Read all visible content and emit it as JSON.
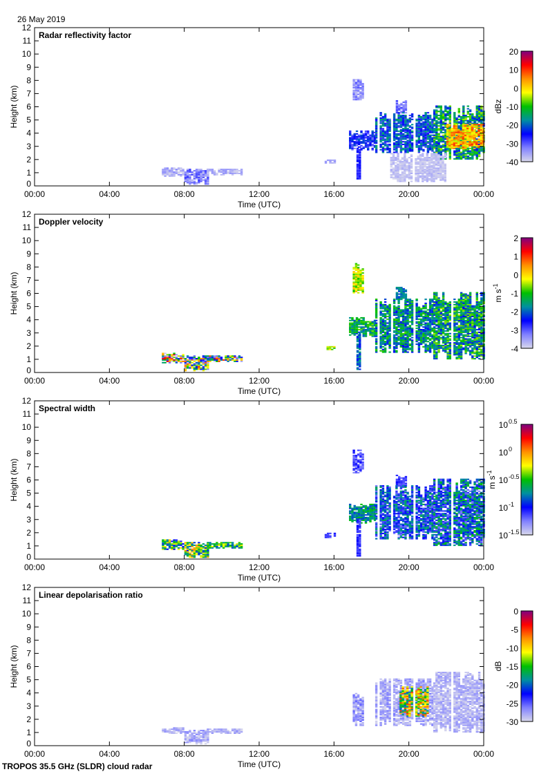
{
  "header": {
    "date": "26 May 2019"
  },
  "footer": {
    "instrument": "TROPOS 35.5 GHz (SLDR) cloud radar"
  },
  "chart_data": {
    "x_ticks": [
      "00:00",
      "04:00",
      "08:00",
      "12:00",
      "16:00",
      "20:00",
      "00:00"
    ],
    "xlim_utc_hours": [
      0,
      24
    ],
    "ylim_km": [
      0,
      12
    ],
    "y_ticks": [
      "0",
      "1",
      "2",
      "3",
      "4",
      "5",
      "6",
      "7",
      "8",
      "9",
      "10",
      "11",
      "12"
    ],
    "gaps_utc_hours": [
      18.35,
      19.05,
      20.25,
      21.35,
      22.3
    ],
    "colormap": [
      "#d8d8ec",
      "#8080ff",
      "#0000ff",
      "#0090a0",
      "#00c000",
      "#ffff00",
      "#ff9000",
      "#ff0000",
      "#800080"
    ],
    "panels": [
      {
        "type": "heatmap",
        "title": "Radar reflectivity factor",
        "xlabel": "Time (UTC)",
        "ylabel": "Height (km)",
        "unit": "dBz",
        "unit_sup": "",
        "vlim": [
          -40,
          20
        ],
        "cbar_ticks": [
          "20",
          "10",
          "0",
          "-10",
          "-20",
          "-30",
          "-40"
        ],
        "cbar_sup": null,
        "regions": [
          [
            6.8,
            8.0,
            0.7,
            1.4,
            -40,
            -32
          ],
          [
            8.0,
            9.2,
            0.1,
            1.3,
            -38,
            -28
          ],
          [
            9.2,
            11.0,
            0.8,
            1.3,
            -40,
            -33
          ],
          [
            15.5,
            16.0,
            1.6,
            2.0,
            -38,
            -34
          ],
          [
            17.0,
            17.5,
            6.5,
            8.0,
            -38,
            -30
          ],
          [
            19.3,
            19.8,
            5.5,
            6.4,
            -35,
            -28
          ],
          [
            16.8,
            18.2,
            2.7,
            4.2,
            -32,
            -20
          ],
          [
            17.2,
            17.4,
            0.2,
            3.0,
            -30,
            -24
          ],
          [
            18.2,
            21.3,
            2.5,
            5.5,
            -30,
            -14
          ],
          [
            21.3,
            24.0,
            2.0,
            6.0,
            -25,
            -5
          ],
          [
            22.0,
            24.0,
            2.8,
            4.6,
            -5,
            10
          ],
          [
            19.0,
            22.0,
            0.3,
            2.5,
            -40,
            -36
          ]
        ]
      },
      {
        "type": "heatmap",
        "title": "Doppler velocity",
        "xlabel": "Time (UTC)",
        "ylabel": "Height (km)",
        "unit": "m s",
        "unit_sup": "-1",
        "vlim": [
          -4,
          2
        ],
        "cbar_ticks": [
          "2",
          "1",
          "0",
          "-1",
          "-2",
          "-3",
          "-4"
        ],
        "cbar_sup": null,
        "regions": [
          [
            6.8,
            8.0,
            0.7,
            1.5,
            -4,
            2
          ],
          [
            8.0,
            9.2,
            0.1,
            1.3,
            -4,
            1
          ],
          [
            9.2,
            11.0,
            0.8,
            1.3,
            -4,
            2
          ],
          [
            15.6,
            16.0,
            1.6,
            2.0,
            -1,
            0
          ],
          [
            17.0,
            17.5,
            6.0,
            8.2,
            -1,
            0.3
          ],
          [
            19.3,
            19.8,
            5.5,
            6.4,
            -2.2,
            -1.5
          ],
          [
            16.8,
            18.2,
            2.7,
            4.2,
            -2.2,
            -0.6
          ],
          [
            17.2,
            17.4,
            0.2,
            3.0,
            -2.5,
            -1.5
          ],
          [
            18.2,
            21.3,
            1.5,
            5.5,
            -2.5,
            -0.8
          ],
          [
            21.3,
            24.0,
            1.0,
            6.0,
            -2.5,
            -0.5
          ]
        ]
      },
      {
        "type": "heatmap",
        "title": "Spectral width",
        "xlabel": "Time (UTC)",
        "ylabel": "Height (km)",
        "unit": "m s",
        "unit_sup": "-1",
        "vlim": [
          -1.5,
          0.5
        ],
        "cbar_ticks": [
          "10",
          "10",
          "10",
          "10",
          "10"
        ],
        "cbar_sup": [
          "0.5",
          "0",
          "-0.5",
          "-1",
          "-1.5"
        ],
        "regions": [
          [
            6.8,
            8.0,
            0.7,
            1.5,
            -1.1,
            -0.1
          ],
          [
            8.0,
            9.2,
            0.1,
            1.3,
            -1.0,
            0
          ],
          [
            9.2,
            11.0,
            0.8,
            1.3,
            -0.9,
            -0.2
          ],
          [
            15.5,
            16.0,
            1.6,
            2.0,
            -1.2,
            -1.0
          ],
          [
            17.0,
            17.5,
            6.5,
            8.2,
            -1.3,
            -1.0
          ],
          [
            19.3,
            19.8,
            5.5,
            6.4,
            -1.2,
            -1.0
          ],
          [
            16.8,
            18.2,
            2.7,
            4.2,
            -0.9,
            -0.5
          ],
          [
            17.2,
            17.4,
            0.2,
            3.0,
            -1.2,
            -1.0
          ],
          [
            18.2,
            21.3,
            1.5,
            5.5,
            -1.25,
            -0.6
          ],
          [
            21.3,
            24.0,
            1.0,
            6.0,
            -1.25,
            -0.5
          ]
        ]
      },
      {
        "type": "heatmap",
        "title": "Linear depolarisation ratio",
        "xlabel": "Time (UTC)",
        "ylabel": "Height (km)",
        "unit": "dB",
        "unit_sup": "",
        "vlim": [
          -30,
          0
        ],
        "cbar_ticks": [
          "0",
          "-5",
          "-10",
          "-15",
          "-20",
          "-25",
          "-30"
        ],
        "cbar_sup": null,
        "regions": [
          [
            6.8,
            8.0,
            0.9,
            1.4,
            -30,
            -27
          ],
          [
            8.0,
            9.2,
            0.1,
            1.2,
            -30,
            -26
          ],
          [
            9.2,
            11.0,
            0.9,
            1.3,
            -30,
            -27
          ],
          [
            17.0,
            17.5,
            1.5,
            4.0,
            -30,
            -25
          ],
          [
            18.2,
            21.3,
            1.5,
            5.0,
            -30,
            -26
          ],
          [
            21.3,
            24.0,
            1.0,
            5.5,
            -30,
            -27
          ],
          [
            19.5,
            21.0,
            2.2,
            4.5,
            -20,
            -5
          ]
        ]
      }
    ]
  }
}
